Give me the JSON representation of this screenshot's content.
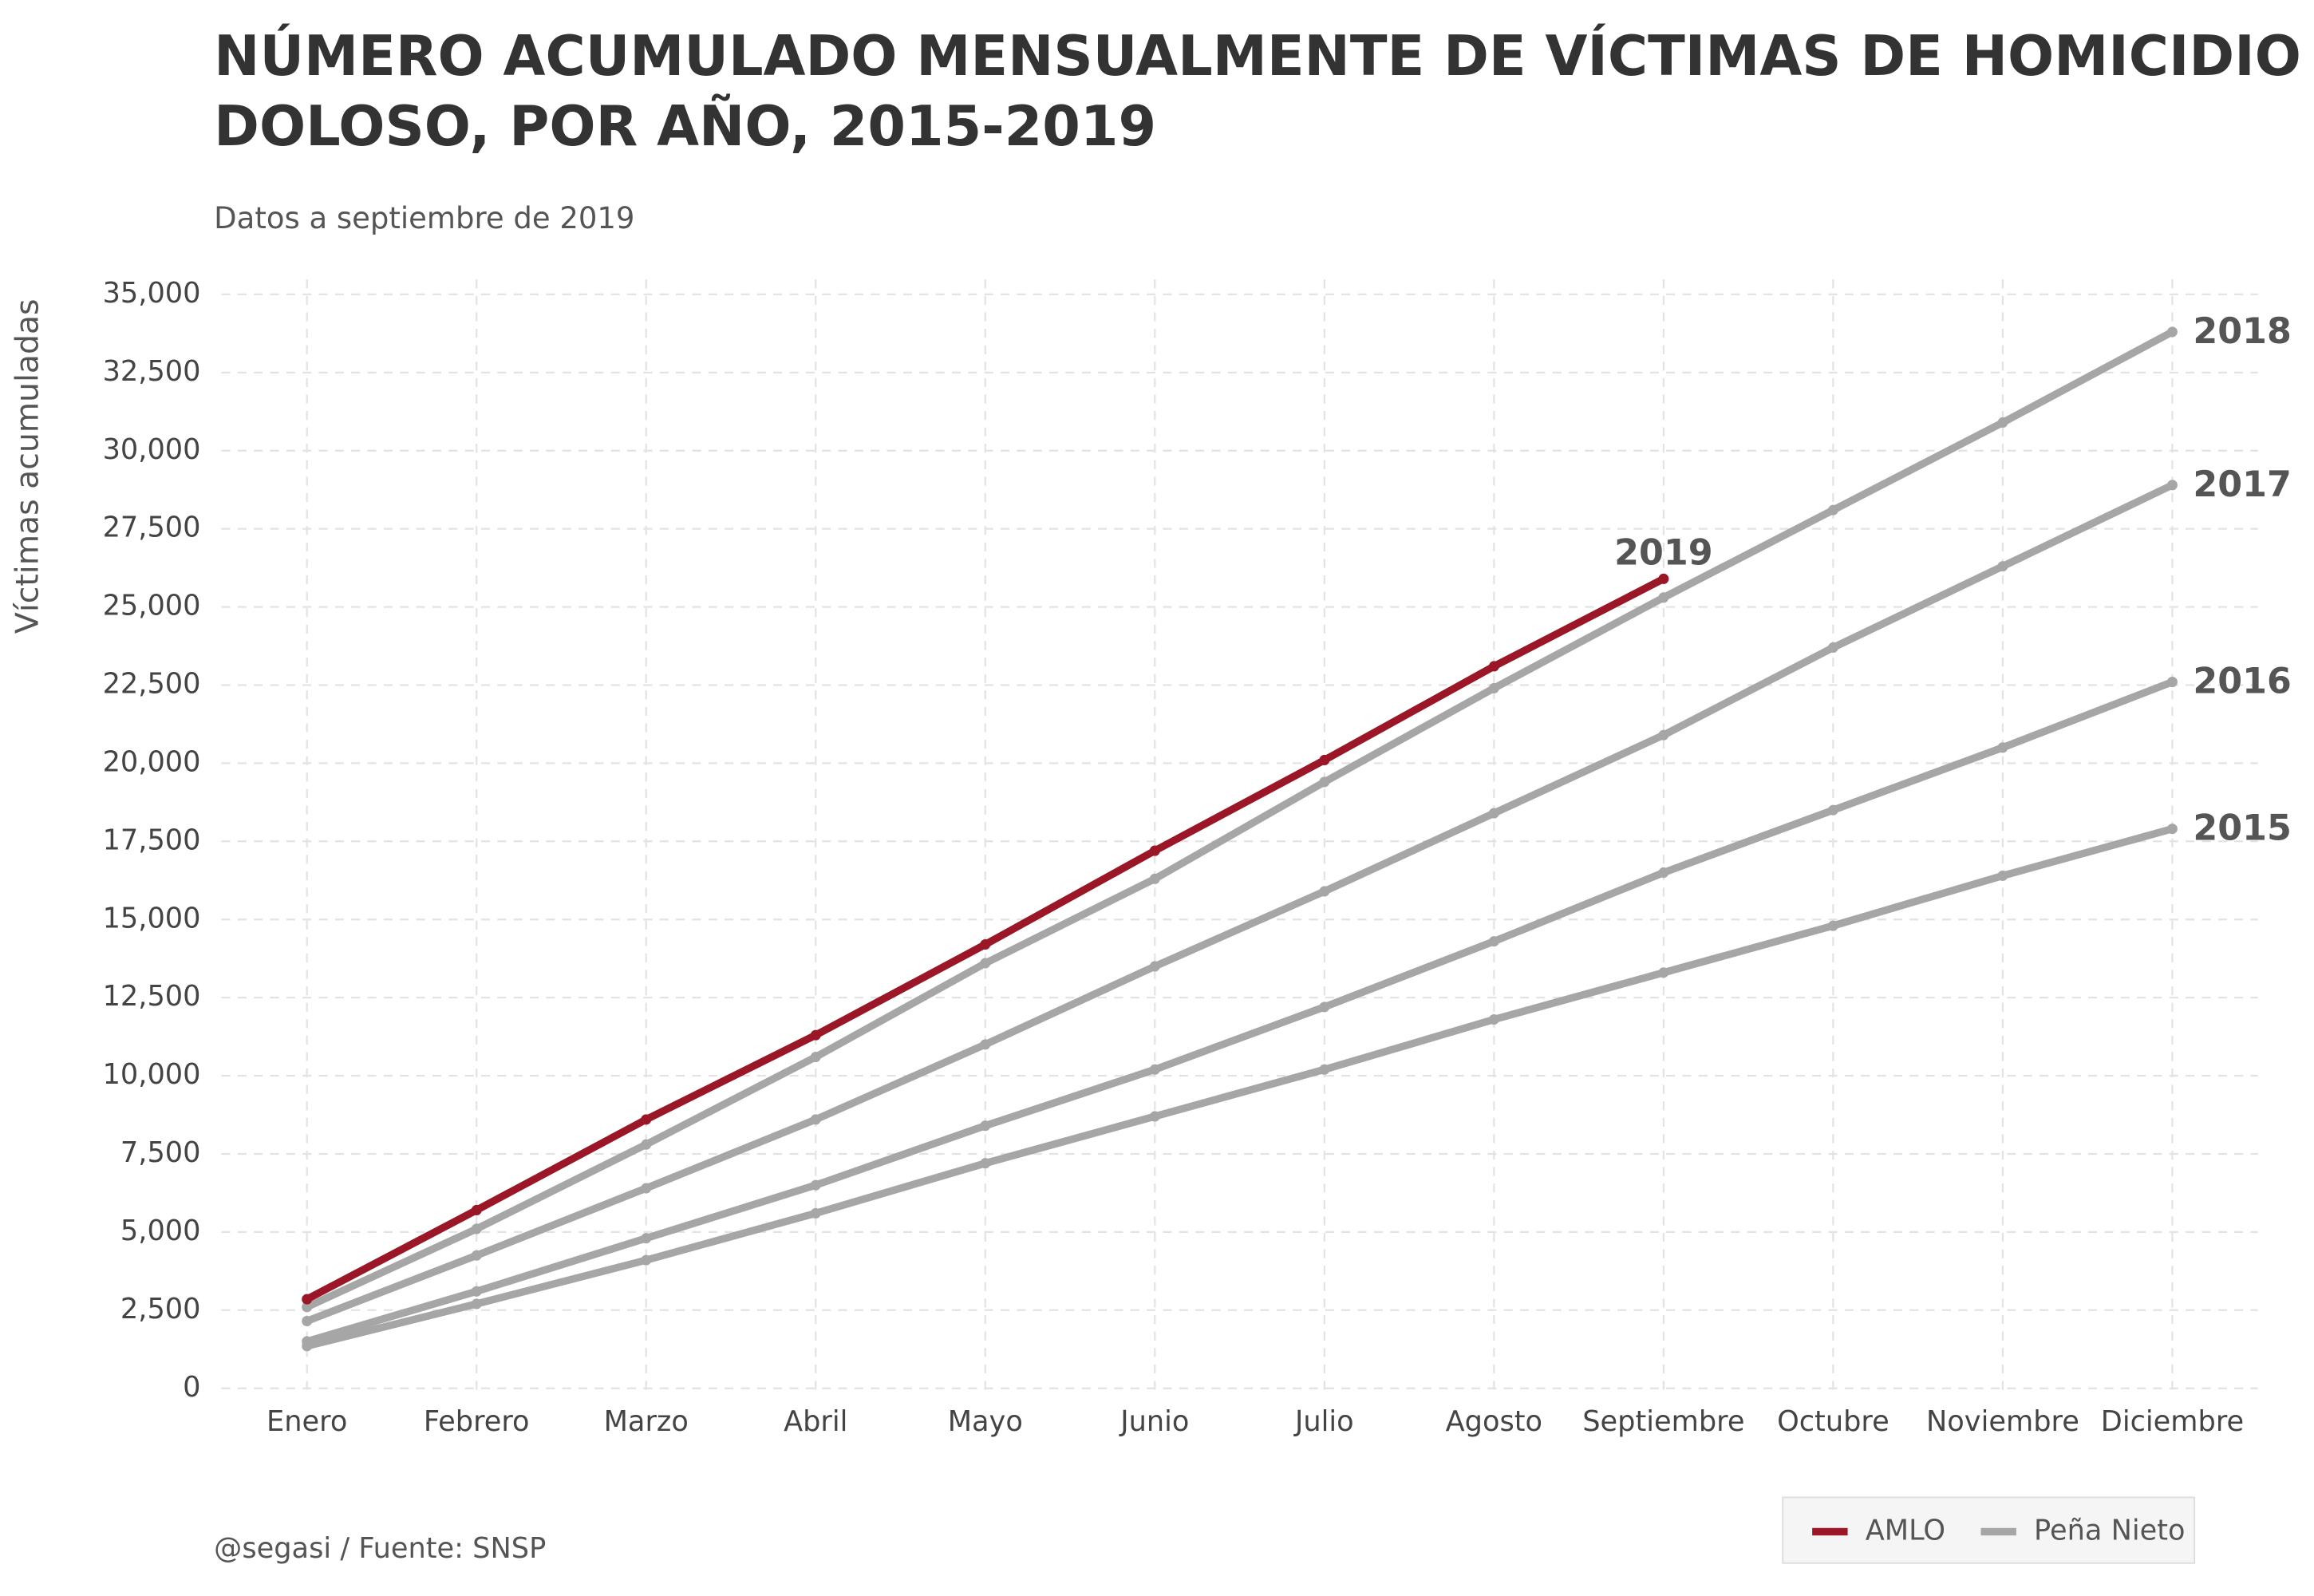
{
  "chart_data": {
    "type": "line",
    "title": [
      "NÚMERO ACUMULADO MENSUALMENTE DE VÍCTIMAS DE HOMICIDIO",
      "DOLOSO, POR AÑO, 2015-2019"
    ],
    "subtitle": "Datos a septiembre de 2019",
    "y_label": "Víctimas acumuladas",
    "caption": "@segasi / Fuente: SNSP",
    "categories": [
      "Enero",
      "Febrero",
      "Marzo",
      "Abril",
      "Mayo",
      "Junio",
      "Julio",
      "Agosto",
      "Septiembre",
      "Octubre",
      "Noviembre",
      "Diciembre"
    ],
    "ylim": [
      0,
      35000
    ],
    "yticks": [
      0,
      {
        "value": 2500,
        "label": "2,500"
      },
      {
        "value": 5000,
        "label": "5,000"
      },
      {
        "value": 7500,
        "label": "7,500"
      },
      {
        "value": 10000,
        "label": "10,000"
      },
      {
        "value": 12500,
        "label": "12,500"
      },
      {
        "value": 15000,
        "label": "15,000"
      },
      {
        "value": 17500,
        "label": "17,500"
      },
      {
        "value": 20000,
        "label": "20,000"
      },
      {
        "value": 22500,
        "label": "22,500"
      },
      {
        "value": 25000,
        "label": "25,000"
      },
      {
        "value": 27500,
        "label": "27,500"
      },
      {
        "value": 30000,
        "label": "30,000"
      },
      {
        "value": 32500,
        "label": "32,500"
      },
      {
        "value": 35000,
        "label": "35,000"
      }
    ],
    "grid": true,
    "legend": [
      {
        "name": "AMLO",
        "color": "#9b1626"
      },
      {
        "name": "Peña Nieto",
        "color": "#a6a6a6"
      }
    ],
    "series": [
      {
        "name": "2015",
        "color": "#a6a6a6",
        "values": [
          1350,
          2700,
          4100,
          5600,
          7200,
          8700,
          10200,
          11800,
          13300,
          14800,
          16400,
          17900
        ]
      },
      {
        "name": "2016",
        "color": "#a6a6a6",
        "values": [
          1500,
          3100,
          4800,
          6500,
          8400,
          10200,
          12200,
          14300,
          16500,
          18500,
          20500,
          22600
        ]
      },
      {
        "name": "2017",
        "color": "#a6a6a6",
        "values": [
          2150,
          4250,
          6400,
          8600,
          11000,
          13500,
          15900,
          18400,
          20900,
          23700,
          26300,
          28900
        ]
      },
      {
        "name": "2018",
        "color": "#a6a6a6",
        "values": [
          2600,
          5100,
          7800,
          10600,
          13600,
          16300,
          19400,
          22400,
          25300,
          28100,
          30900,
          33800
        ]
      },
      {
        "name": "2019",
        "color": "#9b1626",
        "values": [
          2850,
          5700,
          8600,
          11300,
          14200,
          17200,
          20100,
          23100,
          25900,
          null,
          null,
          null
        ]
      }
    ]
  }
}
